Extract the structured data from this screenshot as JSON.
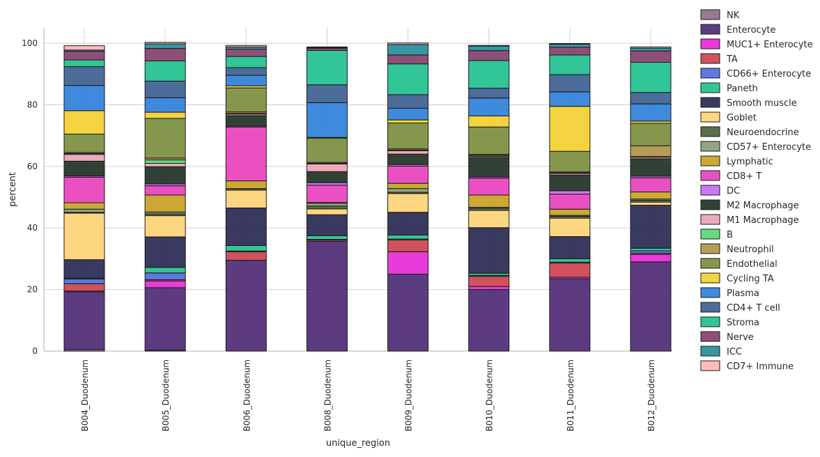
{
  "chart_data": {
    "type": "bar",
    "stacked": true,
    "xlabel": "unique_region",
    "ylabel": "percent",
    "ylim": [
      0,
      105
    ],
    "yticks": [
      0,
      20,
      40,
      60,
      80,
      100
    ],
    "grid": true,
    "legend_position": "right",
    "categories": [
      "B004_Duodenum",
      "B005_Duodenum",
      "B006_Duodenum",
      "B008_Duodenum",
      "B009_Duodenum",
      "B010_Duodenum",
      "B011_Duodenum",
      "B012_Duodenum"
    ],
    "series": [
      {
        "name": "NK",
        "color": "#8e6a86",
        "values": [
          0.5,
          0.3,
          0.0,
          0.0,
          0.0,
          0.0,
          0.0,
          0.0
        ]
      },
      {
        "name": "Enterocyte",
        "color": "#4a2672",
        "values": [
          18.8,
          20.3,
          29.5,
          35.7,
          25.0,
          20.0,
          23.5,
          29.0
        ]
      },
      {
        "name": "MUC1+ Enterocyte",
        "color": "#e626d6",
        "values": [
          0.2,
          2.2,
          0.0,
          0.0,
          7.3,
          1.0,
          0.5,
          2.4
        ]
      },
      {
        "name": "TA",
        "color": "#cc3f4a",
        "values": [
          2.4,
          0.4,
          2.8,
          0.4,
          3.8,
          3.3,
          4.6,
          0.4
        ]
      },
      {
        "name": "CD66+ Enterocyte",
        "color": "#4b6adb",
        "values": [
          1.5,
          2.2,
          0.2,
          0.2,
          0.3,
          0.3,
          0.3,
          0.8
        ]
      },
      {
        "name": "Paneth",
        "color": "#1fbf8a",
        "values": [
          0.3,
          1.8,
          1.8,
          1.2,
          1.3,
          0.7,
          1.1,
          0.8
        ]
      },
      {
        "name": "Smooth muscle",
        "color": "#25234f",
        "values": [
          6.0,
          9.9,
          12.2,
          6.8,
          7.4,
          14.8,
          7.2,
          14.0
        ]
      },
      {
        "name": "Goblet",
        "color": "#fcd272",
        "values": [
          15.1,
          6.9,
          5.8,
          1.9,
          6.1,
          5.6,
          6.0,
          1.0
        ]
      },
      {
        "name": "Neuroendocrine",
        "color": "#465e38",
        "values": [
          0.3,
          0.6,
          0.5,
          0.9,
          0.4,
          0.7,
          0.6,
          0.6
        ]
      },
      {
        "name": "CD57+ Enterocyte",
        "color": "#879b72",
        "values": [
          1.0,
          0.6,
          0.0,
          0.9,
          1.2,
          0.3,
          0.3,
          0.4
        ]
      },
      {
        "name": "Lymphatic",
        "color": "#c89f1f",
        "values": [
          2.1,
          5.5,
          2.5,
          0.3,
          1.7,
          4.0,
          2.0,
          2.3
        ]
      },
      {
        "name": "CD8+ T",
        "color": "#e93dbd",
        "values": [
          8.3,
          3.0,
          17.5,
          5.6,
          5.6,
          5.5,
          4.9,
          4.6
        ]
      },
      {
        "name": "DC",
        "color": "#c46bef",
        "values": [
          0.4,
          0.6,
          0.3,
          0.8,
          0.5,
          0.4,
          1.1,
          0.5
        ]
      },
      {
        "name": "M2 Macrophage",
        "color": "#1c2c20",
        "values": [
          4.8,
          5.6,
          3.4,
          3.6,
          3.4,
          6.3,
          5.1,
          5.7
        ]
      },
      {
        "name": "M1 Macrophage",
        "color": "#eca1b4",
        "values": [
          2.2,
          1.1,
          0.5,
          2.5,
          1.1,
          0.4,
          0.5,
          0.5
        ]
      },
      {
        "name": "B",
        "color": "#55d670",
        "values": [
          0.3,
          1.1,
          0.2,
          0.2,
          0.2,
          0.3,
          0.2,
          0.2
        ]
      },
      {
        "name": "Neutrophil",
        "color": "#ad9242",
        "values": [
          0.3,
          0.6,
          0.5,
          0.3,
          0.4,
          0.3,
          0.3,
          3.5
        ]
      },
      {
        "name": "Endothelial",
        "color": "#788c3a",
        "values": [
          6.0,
          12.9,
          7.8,
          7.9,
          8.4,
          8.9,
          6.7,
          7.3
        ]
      },
      {
        "name": "Cycling TA",
        "color": "#f3ce2c",
        "values": [
          7.6,
          2.0,
          0.7,
          0.2,
          1.0,
          3.6,
          14.6,
          0.7
        ]
      },
      {
        "name": "Plasma",
        "color": "#2a7dd9",
        "values": [
          8.2,
          4.7,
          3.4,
          11.3,
          3.8,
          5.8,
          4.7,
          5.6
        ]
      },
      {
        "name": "CD4+ T cell",
        "color": "#3a5c8e",
        "values": [
          6.1,
          5.4,
          2.5,
          5.8,
          4.4,
          3.2,
          5.6,
          3.7
        ]
      },
      {
        "name": "Stroma",
        "color": "#1bbf8c",
        "values": [
          2.2,
          6.6,
          3.6,
          11.2,
          10.0,
          9.0,
          6.4,
          9.8
        ]
      },
      {
        "name": "Nerve",
        "color": "#823c68",
        "values": [
          2.8,
          4.0,
          2.4,
          0.7,
          2.9,
          3.2,
          2.5,
          3.7
        ]
      },
      {
        "name": "ICC",
        "color": "#1f8c9a",
        "values": [
          0.4,
          1.5,
          0.7,
          0.2,
          3.4,
          1.5,
          1.0,
          0.9
        ]
      },
      {
        "name": "CD7+ Immune",
        "color": "#fdb5b5",
        "values": [
          1.4,
          0.5,
          0.5,
          0.2,
          0.5,
          0.2,
          0.2,
          0.4
        ]
      }
    ]
  }
}
